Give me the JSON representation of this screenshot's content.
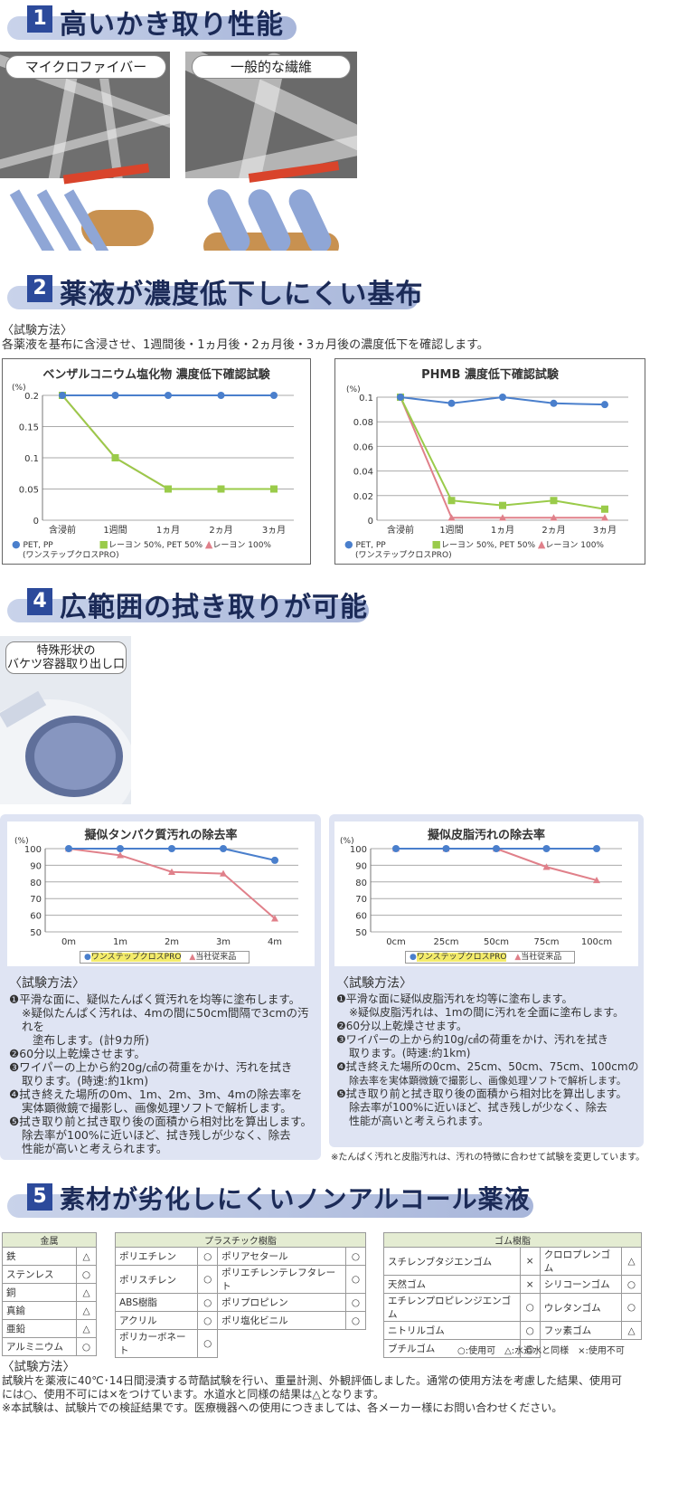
{
  "sec1": {
    "num": "1",
    "title": "高いかき取り性能",
    "label_left": "マイクロファイバー",
    "label_right": "一般的な繊維"
  },
  "sec2": {
    "num": "2",
    "title": "薬液が濃度低下しにくい基布",
    "method_h": "〈試験方法〉",
    "method_text": "各薬液を基布に含浸させ、1週間後・1ヵ月後・2ヵ月後・3ヵ月後の濃度低下を確認します。"
  },
  "chart1": {
    "title": "ベンザルコニウム塩化物 濃度低下確認試験",
    "unit": "(%)",
    "legend_pet": "PET, PP",
    "legend_pet_sub": "(ワンステップクロスPRO)",
    "legend_ray": "レーヨン 50%, PET 50%",
    "legend_ray100": "レーヨン 100%"
  },
  "chart2": {
    "title": "PHMB 濃度低下確認試験",
    "unit": "(%)",
    "legend_pet": "PET, PP",
    "legend_pet_sub": "(ワンステップクロスPRO)",
    "legend_ray": "レーヨン 50%, PET 50%",
    "legend_ray100": "レーヨン 100%"
  },
  "sec4": {
    "num": "4",
    "title": "広範囲の拭き取りが可能",
    "photo_label1": "特殊形状の",
    "photo_label2": "バケツ容器取り出し口"
  },
  "chart3": {
    "title": "擬似タンパク質汚れの除去率",
    "unit": "(%)",
    "legend_a": "ワンステップクロスPRO",
    "legend_b": "当社従来品"
  },
  "chart4": {
    "title": "擬似皮脂汚れの除去率",
    "unit": "(%)",
    "legend_a": "ワンステップクロスPRO",
    "legend_b": "当社従来品"
  },
  "method_left": {
    "h": "〈試験方法〉",
    "l1": "❶平滑な面に、疑似たんぱく質汚れを均等に塗布します。",
    "l1a": "※疑似たんぱく汚れは、4mの間に50cm間隔で3cmの汚れを",
    "l1b": "塗布します。(計9カ所)",
    "l2": "❷60分以上乾燥させます。",
    "l3a": "❸ワイパーの上から約20g/㎠の荷重をかけ、汚れを拭き",
    "l3b": "取ります。(時速:約1km)",
    "l4a": "❹拭き終えた場所の0m、1m、2m、3m、4mの除去率を",
    "l4b": "実体顕微鏡で撮影し、画像処理ソフトで解析します。",
    "l5a": "❺拭き取り前と拭き取り後の面積から相対比を算出します。",
    "l5b": "除去率が100%に近いほど、拭き残しが少なく、除去",
    "l5c": "性能が高いと考えられます。"
  },
  "method_right": {
    "h": "〈試験方法〉",
    "l1": "❶平滑な面に疑似皮脂汚れを均等に塗布します。",
    "l1a": "※疑似皮脂汚れは、1mの間に汚れを全面に塗布します。",
    "l2": "❷60分以上乾燥させます。",
    "l3a": "❸ワイパーの上から約10g/㎠の荷重をかけ、汚れを拭き",
    "l3b": "取ります。(時速:約1km)",
    "l4a": "❹拭き終えた場所の0cm、25cm、50cm、75cm、100cmの",
    "l4b": "除去率を実体顕微鏡で撮影し、画像処理ソフトで解析します。",
    "l5a": "❺拭き取り前と拭き取り後の面積から相対比を算出します。",
    "l5b": "除去率が100%に近いほど、拭き残しが少なく、除去",
    "l5c": "性能が高いと考えられます。"
  },
  "note_tanpaku": "※たんぱく汚れと皮脂汚れは、汚れの特徴に合わせて試験を変更しています。",
  "sec5": {
    "num": "5",
    "title": "素材が劣化しにくいノンアルコール薬液"
  },
  "metal": {
    "header": "金属",
    "rows": [
      [
        "鉄",
        "△"
      ],
      [
        "ステンレス",
        "○"
      ],
      [
        "銅",
        "△"
      ],
      [
        "真鍮",
        "△"
      ],
      [
        "亜鉛",
        "△"
      ],
      [
        "アルミニウム",
        "○"
      ]
    ]
  },
  "plastic": {
    "header": "プラスチック樹脂",
    "rows": [
      [
        "ポリエチレン",
        "○",
        "ポリアセタール",
        "○"
      ],
      [
        "ポリスチレン",
        "○",
        "ポリエチレンテレフタレート",
        "○"
      ],
      [
        "ABS樹脂",
        "○",
        "ポリプロピレン",
        "○"
      ],
      [
        "アクリル",
        "○",
        "ポリ塩化ビニル",
        "○"
      ],
      [
        "ポリカーボネート",
        "○",
        "",
        ""
      ]
    ]
  },
  "rubber": {
    "header": "ゴム樹脂",
    "rows": [
      [
        "スチレンブタジエンゴム",
        "×",
        "クロロプレンゴム",
        "△"
      ],
      [
        "天然ゴム",
        "×",
        "シリコーンゴム",
        "○"
      ],
      [
        "エチレンプロピレンジエンゴム",
        "○",
        "ウレタンゴム",
        "○"
      ],
      [
        "ニトリルゴム",
        "○",
        "フッ素ゴム",
        "△"
      ],
      [
        "ブチルゴム",
        "○",
        "",
        ""
      ]
    ]
  },
  "symbols_legend": "○:使用可　△:水道水と同様　×:使用不可",
  "bottom": {
    "h": "〈試験方法〉",
    "l1": "試験片を薬液に40℃･14日間浸漬する苛酷試験を行い、重量計測、外観評価しました。通常の使用方法を考慮した結果、使用可",
    "l2": "には○、使用不可には×をつけています。水道水と同様の結果は△となります。",
    "l3": "※本試験は、試験片での検証結果です。医療機器への使用につきましては、各メーカー様にお問い合わせください。"
  },
  "chart_data": [
    {
      "type": "line",
      "title": "ベンザルコニウム塩化物 濃度低下確認試験",
      "ylabel": "(%)",
      "categories": [
        "含浸前",
        "1週間",
        "1ヵ月",
        "2ヵ月",
        "3ヵ月"
      ],
      "ylim": [
        0,
        0.2
      ],
      "yticks": [
        "0",
        "0.05",
        "0.1",
        "0.15",
        "0.2"
      ],
      "series": [
        {
          "name": "PET, PP",
          "color": "#4a7fcc",
          "marker": "circle",
          "values": [
            0.2,
            0.2,
            0.2,
            0.2,
            0.2
          ]
        },
        {
          "name": "レーヨン 50%, PET 50%",
          "color": "#9acb4a",
          "marker": "square",
          "values": [
            0.2,
            0.1,
            0.05,
            0.05,
            0.05
          ]
        },
        {
          "name": "レーヨン 100%",
          "color": "#e0808a",
          "marker": "triangle",
          "values": [
            0.2,
            0.1,
            0.05,
            0.05,
            0.05
          ]
        }
      ]
    },
    {
      "type": "line",
      "title": "PHMB 濃度低下確認試験",
      "ylabel": "(%)",
      "categories": [
        "含浸前",
        "1週間",
        "1ヵ月",
        "2ヵ月",
        "3ヵ月"
      ],
      "ylim": [
        0,
        0.1
      ],
      "yticks": [
        "0",
        "0.02",
        "0.04",
        "0.06",
        "0.08",
        "0.1"
      ],
      "series": [
        {
          "name": "PET, PP",
          "color": "#4a7fcc",
          "marker": "circle",
          "values": [
            0.1,
            0.095,
            0.1,
            0.095,
            0.094
          ]
        },
        {
          "name": "レーヨン 50%, PET 50%",
          "color": "#9acb4a",
          "marker": "square",
          "values": [
            0.1,
            0.016,
            0.012,
            0.016,
            0.009
          ]
        },
        {
          "name": "レーヨン 100%",
          "color": "#e0808a",
          "marker": "triangle",
          "values": [
            0.1,
            0.002,
            0.002,
            0.002,
            0.002
          ]
        }
      ]
    },
    {
      "type": "line",
      "title": "擬似タンパク質汚れの除去率",
      "ylabel": "(%)",
      "categories": [
        "0m",
        "1m",
        "2m",
        "3m",
        "4m"
      ],
      "ylim": [
        50,
        100
      ],
      "yticks": [
        "50",
        "60",
        "70",
        "80",
        "90",
        "100"
      ],
      "series": [
        {
          "name": "ワンステップクロスPRO",
          "color": "#4a7fcc",
          "marker": "circle",
          "values": [
            100,
            100,
            100,
            100,
            93
          ]
        },
        {
          "name": "当社従来品",
          "color": "#e0808a",
          "marker": "triangle",
          "values": [
            100,
            96,
            86,
            85,
            58
          ]
        }
      ]
    },
    {
      "type": "line",
      "title": "擬似皮脂汚れの除去率",
      "ylabel": "(%)",
      "categories": [
        "0cm",
        "25cm",
        "50cm",
        "75cm",
        "100cm"
      ],
      "ylim": [
        50,
        100
      ],
      "yticks": [
        "50",
        "60",
        "70",
        "80",
        "90",
        "100"
      ],
      "series": [
        {
          "name": "ワンステップクロスPRO",
          "color": "#4a7fcc",
          "marker": "circle",
          "values": [
            100,
            100,
            100,
            100,
            100
          ]
        },
        {
          "name": "当社従来品",
          "color": "#e0808a",
          "marker": "triangle",
          "values": [
            100,
            100,
            100,
            89,
            81
          ]
        }
      ]
    }
  ]
}
